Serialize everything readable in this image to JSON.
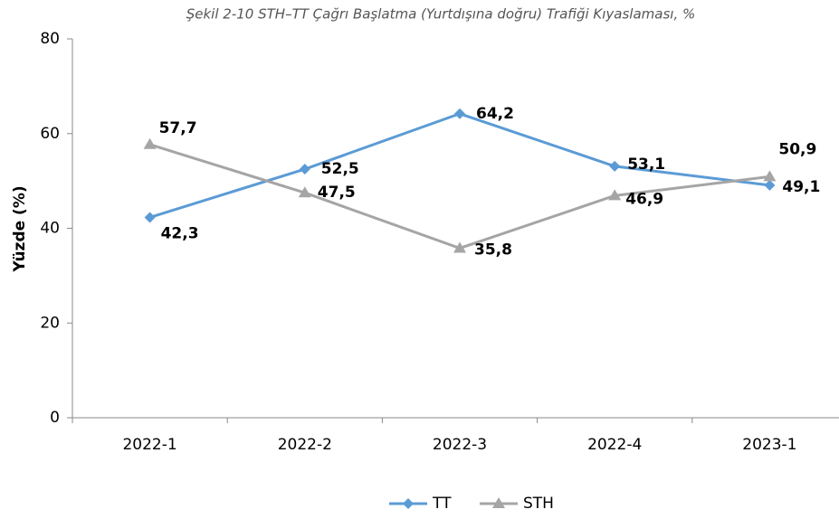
{
  "chart_data": {
    "type": "line",
    "title": "Şekil 2-10 STH–TT Çağrı Başlatma (Yurtdışına doğru) Trafiği Kıyaslaması, %",
    "y_label": "Yüzde (%)",
    "categories": [
      "2022-1",
      "2022-2",
      "2022-3",
      "2022-4",
      "2023-1"
    ],
    "series": [
      {
        "name": "TT",
        "color": "#5b9bd5",
        "marker": "diamond",
        "values": [
          42.3,
          52.5,
          64.2,
          53.1,
          49.1
        ],
        "value_labels": [
          "42,3",
          "52,5",
          "64,2",
          "53,1",
          "49,1"
        ]
      },
      {
        "name": "STH",
        "color": "#a5a5a5",
        "marker": "triangle",
        "values": [
          57.7,
          47.5,
          35.8,
          46.9,
          50.9
        ],
        "value_labels": [
          "57,7",
          "47,5",
          "35,8",
          "46,9",
          "50,9"
        ]
      }
    ],
    "ylim": [
      0,
      80
    ],
    "yticks": [
      0,
      20,
      40,
      60,
      80
    ],
    "grid": false,
    "legend": "bottom"
  }
}
